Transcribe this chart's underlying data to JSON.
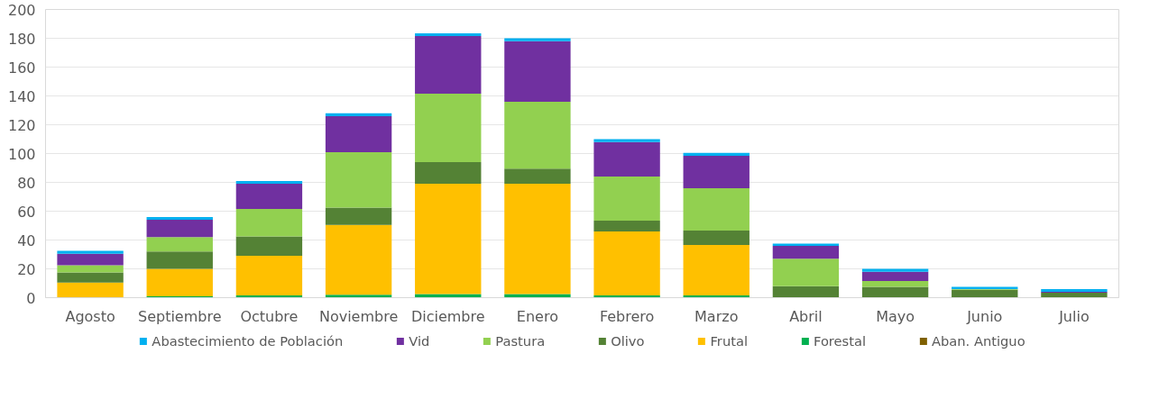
{
  "chart_data": {
    "type": "bar",
    "stacked": true,
    "categories": [
      "Agosto",
      "Septiembre",
      "Octubre",
      "Noviembre",
      "Diciembre",
      "Enero",
      "Febrero",
      "Marzo",
      "Abril",
      "Mayo",
      "Junio",
      "Julio"
    ],
    "series": [
      {
        "name": "Aban. Antiguo",
        "color": "#7f6000",
        "values": [
          0,
          0,
          0,
          0,
          0,
          0,
          0,
          0,
          0,
          0,
          0,
          0
        ]
      },
      {
        "name": "Forestal",
        "color": "#00b050",
        "values": [
          null,
          1,
          1.5,
          2,
          2.5,
          2.5,
          1.5,
          1.5,
          null,
          0,
          0,
          0
        ]
      },
      {
        "name": "Frutal",
        "color": "#ffc000",
        "values": [
          10.5,
          19,
          27.5,
          48.5,
          76.5,
          76.5,
          44.5,
          35,
          0,
          0,
          0,
          0
        ]
      },
      {
        "name": "Olivo",
        "color": "#548235",
        "values": [
          7,
          12,
          13.5,
          12,
          15,
          10.5,
          7.5,
          10,
          8,
          7.5,
          5.5,
          3.5
        ]
      },
      {
        "name": "Pastura",
        "color": "#92d050",
        "values": [
          5,
          10,
          19,
          38.5,
          47.5,
          46.5,
          30.5,
          29.5,
          19,
          4,
          0.5,
          0
        ]
      },
      {
        "name": "Vid",
        "color": "#7030a0",
        "values": [
          8,
          12,
          17.5,
          25,
          40,
          42,
          24,
          22.5,
          9,
          6.5,
          0,
          0.5
        ]
      },
      {
        "name": "Abastecimiento de Población",
        "color": "#00b0f0",
        "values": [
          2,
          2,
          2,
          2,
          2,
          2,
          2,
          2,
          1.5,
          2,
          1.5,
          2
        ]
      }
    ],
    "ylim": [
      0,
      200
    ],
    "yticks": [
      0,
      20,
      40,
      60,
      80,
      100,
      120,
      140,
      160,
      180,
      200
    ],
    "grid": "y",
    "legend": "bottom"
  }
}
